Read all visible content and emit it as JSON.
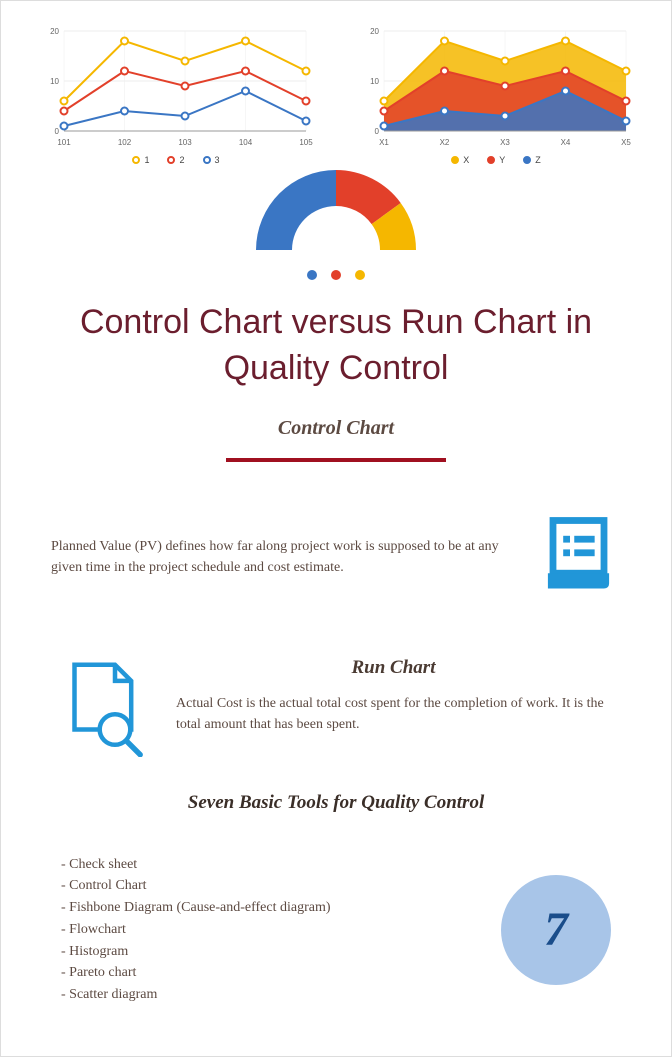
{
  "colors": {
    "yellow": "#f5b700",
    "red": "#e2402a",
    "blue": "#3a76c4",
    "darkred": "#a01020",
    "titlecolor": "#6b1e2e",
    "text": "#5c4a42",
    "circle_bg": "#a8c5e8",
    "circle_text": "#1a4d8a",
    "icon_blue": "#2196d8"
  },
  "line_chart": {
    "type": "line",
    "x_labels": [
      "101",
      "102",
      "103",
      "104",
      "105"
    ],
    "ylim": [
      0,
      20
    ],
    "ytick_step": 10,
    "series": [
      {
        "name": "1",
        "color": "#f5b700",
        "values": [
          6,
          18,
          14,
          18,
          12
        ]
      },
      {
        "name": "2",
        "color": "#e2402a",
        "values": [
          4,
          12,
          9,
          12,
          6
        ]
      },
      {
        "name": "3",
        "color": "#3a76c4",
        "values": [
          1,
          4,
          3,
          8,
          2
        ]
      }
    ],
    "marker": "circle",
    "line_width": 2,
    "background": "#ffffff"
  },
  "area_chart": {
    "type": "area",
    "x_labels": [
      "X1",
      "X2",
      "X3",
      "X4",
      "X5"
    ],
    "ylim": [
      0,
      20
    ],
    "ytick_step": 10,
    "series": [
      {
        "name": "X",
        "color": "#f5b700",
        "values": [
          6,
          18,
          14,
          18,
          12
        ]
      },
      {
        "name": "Y",
        "color": "#e2402a",
        "values": [
          4,
          12,
          9,
          12,
          6
        ]
      },
      {
        "name": "Z",
        "color": "#3a76c4",
        "values": [
          1,
          4,
          3,
          8,
          2
        ]
      }
    ],
    "fill_opacity": 0.85,
    "background": "#ffffff"
  },
  "gauge": {
    "type": "donut-half",
    "segments": [
      {
        "color": "#3a76c4",
        "fraction": 0.5
      },
      {
        "color": "#e2402a",
        "fraction": 0.3
      },
      {
        "color": "#f5b700",
        "fraction": 0.2
      }
    ],
    "inner_radius_ratio": 0.55
  },
  "dots": [
    "#3a76c4",
    "#e2402a",
    "#f5b700"
  ],
  "title": "Control Chart versus Run Chart in Quality Control",
  "subtitle1": "Control Chart",
  "para1": "Planned Value (PV) defines how far along project work is supposed to be at any given time in the project schedule and cost estimate.",
  "subtitle2": "Run Chart",
  "para2": "Actual Cost is the actual total cost spent for the completion of work. It is the total amount that has been spent.",
  "tools_title": "Seven Basic Tools for Quality Control",
  "tools": [
    "Check sheet",
    "Control Chart",
    "Fishbone Diagram (Cause-and-effect diagram)",
    "Flowchart",
    "Histogram",
    "Pareto chart",
    "Scatter diagram"
  ],
  "big_number": "7"
}
